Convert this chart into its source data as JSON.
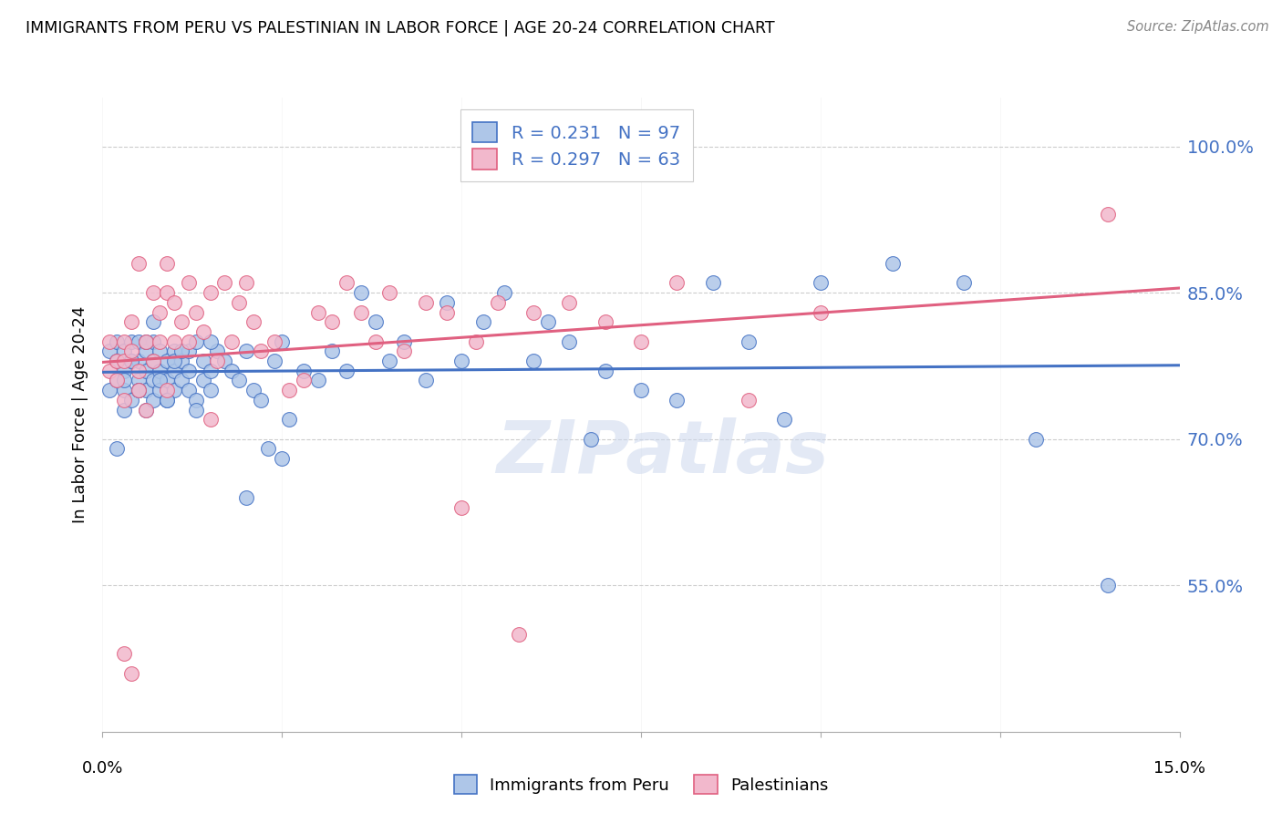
{
  "title": "IMMIGRANTS FROM PERU VS PALESTINIAN IN LABOR FORCE | AGE 20-24 CORRELATION CHART",
  "source": "Source: ZipAtlas.com",
  "ylabel": "In Labor Force | Age 20-24",
  "y_ticks": [
    0.55,
    0.7,
    0.85,
    1.0
  ],
  "y_tick_labels": [
    "55.0%",
    "70.0%",
    "85.0%",
    "100.0%"
  ],
  "xlim": [
    0.0,
    0.15
  ],
  "ylim": [
    0.4,
    1.05
  ],
  "x_tick_positions": [
    0.0,
    0.025,
    0.05,
    0.075,
    0.1,
    0.125,
    0.15
  ],
  "legend_peru": "Immigrants from Peru",
  "legend_pal": "Palestinians",
  "R_peru": 0.231,
  "N_peru": 97,
  "R_pal": 0.297,
  "N_pal": 63,
  "color_peru": "#aec6e8",
  "color_pal": "#f2b8cc",
  "line_color_peru": "#4472c4",
  "line_color_pal": "#e06080",
  "watermark": "ZIPatlas",
  "peru_x": [
    0.001,
    0.001,
    0.002,
    0.002,
    0.002,
    0.003,
    0.003,
    0.003,
    0.003,
    0.004,
    0.004,
    0.004,
    0.005,
    0.005,
    0.005,
    0.005,
    0.006,
    0.006,
    0.006,
    0.006,
    0.007,
    0.007,
    0.007,
    0.007,
    0.008,
    0.008,
    0.008,
    0.009,
    0.009,
    0.009,
    0.01,
    0.01,
    0.01,
    0.011,
    0.011,
    0.012,
    0.012,
    0.012,
    0.013,
    0.013,
    0.014,
    0.014,
    0.015,
    0.015,
    0.016,
    0.017,
    0.018,
    0.019,
    0.02,
    0.021,
    0.022,
    0.023,
    0.024,
    0.025,
    0.026,
    0.028,
    0.03,
    0.032,
    0.034,
    0.036,
    0.038,
    0.04,
    0.042,
    0.045,
    0.048,
    0.05,
    0.053,
    0.056,
    0.06,
    0.062,
    0.065,
    0.068,
    0.07,
    0.075,
    0.08,
    0.085,
    0.09,
    0.095,
    0.1,
    0.11,
    0.12,
    0.13,
    0.14,
    0.002,
    0.003,
    0.004,
    0.005,
    0.006,
    0.007,
    0.008,
    0.009,
    0.01,
    0.011,
    0.013,
    0.015,
    0.02,
    0.025
  ],
  "peru_y": [
    0.79,
    0.75,
    0.78,
    0.8,
    0.76,
    0.77,
    0.79,
    0.75,
    0.73,
    0.78,
    0.8,
    0.74,
    0.76,
    0.78,
    0.8,
    0.75,
    0.77,
    0.79,
    0.75,
    0.73,
    0.78,
    0.76,
    0.74,
    0.8,
    0.77,
    0.79,
    0.75,
    0.76,
    0.78,
    0.74,
    0.77,
    0.75,
    0.79,
    0.78,
    0.76,
    0.77,
    0.79,
    0.75,
    0.74,
    0.8,
    0.76,
    0.78,
    0.77,
    0.75,
    0.79,
    0.78,
    0.77,
    0.76,
    0.79,
    0.75,
    0.74,
    0.69,
    0.78,
    0.8,
    0.72,
    0.77,
    0.76,
    0.79,
    0.77,
    0.85,
    0.82,
    0.78,
    0.8,
    0.76,
    0.84,
    0.78,
    0.82,
    0.85,
    0.78,
    0.82,
    0.8,
    0.7,
    0.77,
    0.75,
    0.74,
    0.86,
    0.8,
    0.72,
    0.86,
    0.88,
    0.86,
    0.7,
    0.55,
    0.69,
    0.76,
    0.78,
    0.75,
    0.8,
    0.82,
    0.76,
    0.74,
    0.78,
    0.79,
    0.73,
    0.8,
    0.64,
    0.68
  ],
  "pal_x": [
    0.001,
    0.001,
    0.002,
    0.002,
    0.003,
    0.003,
    0.003,
    0.004,
    0.004,
    0.005,
    0.005,
    0.005,
    0.006,
    0.006,
    0.007,
    0.007,
    0.008,
    0.008,
    0.009,
    0.009,
    0.009,
    0.01,
    0.01,
    0.011,
    0.012,
    0.012,
    0.013,
    0.014,
    0.015,
    0.015,
    0.016,
    0.017,
    0.018,
    0.019,
    0.02,
    0.021,
    0.022,
    0.024,
    0.026,
    0.028,
    0.03,
    0.032,
    0.034,
    0.036,
    0.038,
    0.04,
    0.042,
    0.045,
    0.048,
    0.05,
    0.052,
    0.055,
    0.058,
    0.06,
    0.065,
    0.07,
    0.075,
    0.08,
    0.09,
    0.1,
    0.003,
    0.004,
    0.14
  ],
  "pal_y": [
    0.77,
    0.8,
    0.78,
    0.76,
    0.8,
    0.78,
    0.74,
    0.82,
    0.79,
    0.77,
    0.75,
    0.88,
    0.8,
    0.73,
    0.85,
    0.78,
    0.83,
    0.8,
    0.85,
    0.88,
    0.75,
    0.8,
    0.84,
    0.82,
    0.8,
    0.86,
    0.83,
    0.81,
    0.85,
    0.72,
    0.78,
    0.86,
    0.8,
    0.84,
    0.86,
    0.82,
    0.79,
    0.8,
    0.75,
    0.76,
    0.83,
    0.82,
    0.86,
    0.83,
    0.8,
    0.85,
    0.79,
    0.84,
    0.83,
    0.63,
    0.8,
    0.84,
    0.5,
    0.83,
    0.84,
    0.82,
    0.8,
    0.86,
    0.74,
    0.83,
    0.48,
    0.46,
    0.93
  ]
}
